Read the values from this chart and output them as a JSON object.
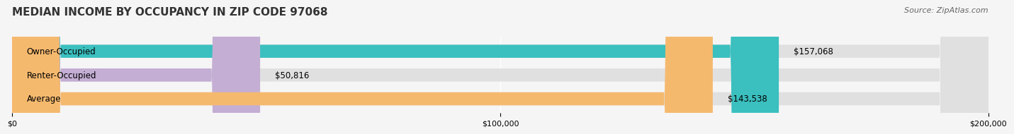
{
  "title": "MEDIAN INCOME BY OCCUPANCY IN ZIP CODE 97068",
  "source": "Source: ZipAtlas.com",
  "categories": [
    "Owner-Occupied",
    "Renter-Occupied",
    "Average"
  ],
  "values": [
    157068,
    50816,
    143538
  ],
  "bar_colors": [
    "#3bbfbf",
    "#c4aed4",
    "#f5b96e"
  ],
  "value_labels": [
    "$157,068",
    "$50,816",
    "$143,538"
  ],
  "xlim": [
    0,
    200000
  ],
  "xtick_labels": [
    "$0",
    "$100,000",
    "$200,000"
  ],
  "background_color": "#f5f5f5",
  "bar_bg_color": "#e0e0e0",
  "title_fontsize": 11,
  "source_fontsize": 8,
  "label_fontsize": 8.5,
  "value_fontsize": 8.5
}
